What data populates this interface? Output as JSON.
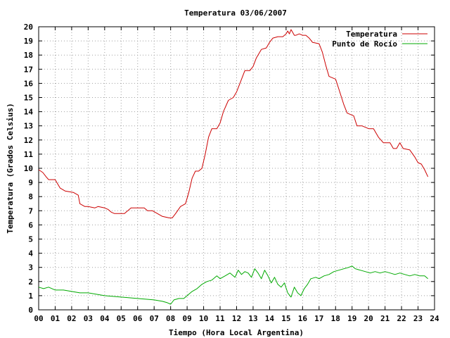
{
  "chart_data": {
    "type": "line",
    "title": "Temperatura 03/06/2007",
    "xlabel": "Tiempo (Hora Local Argentina)",
    "ylabel": "Temperatura (Grados Celsius)",
    "xlim": [
      0,
      24
    ],
    "ylim": [
      0,
      20
    ],
    "x_ticks": [
      "00",
      "01",
      "02",
      "03",
      "04",
      "05",
      "06",
      "07",
      "08",
      "09",
      "10",
      "11",
      "12",
      "13",
      "14",
      "15",
      "16",
      "17",
      "18",
      "19",
      "20",
      "21",
      "22",
      "23",
      "24"
    ],
    "y_ticks": [
      0,
      1,
      2,
      3,
      4,
      5,
      6,
      7,
      8,
      9,
      10,
      11,
      12,
      13,
      14,
      15,
      16,
      17,
      18,
      19,
      20
    ],
    "grid": true,
    "legend_position": "top-right",
    "series": [
      {
        "name": "Temperatura",
        "color": "#cc0000",
        "x": [
          0.0,
          0.25,
          0.45,
          0.6,
          1.0,
          1.3,
          1.6,
          2.1,
          2.4,
          2.5,
          2.8,
          3.0,
          3.4,
          3.6,
          4.0,
          4.2,
          4.4,
          4.6,
          4.9,
          5.2,
          5.4,
          5.6,
          5.8,
          6.1,
          6.4,
          6.6,
          6.9,
          7.2,
          7.5,
          7.9,
          8.1,
          8.3,
          8.6,
          8.9,
          9.1,
          9.3,
          9.5,
          9.7,
          9.9,
          10.1,
          10.3,
          10.5,
          10.8,
          11.0,
          11.2,
          11.5,
          11.8,
          12.0,
          12.2,
          12.5,
          12.8,
          13.0,
          13.2,
          13.5,
          13.8,
          14.0,
          14.2,
          14.5,
          14.8,
          15.0,
          15.1,
          15.2,
          15.3,
          15.4,
          15.5,
          15.6,
          15.8,
          16.0,
          16.2,
          16.4,
          16.6,
          17.0,
          17.2,
          17.4,
          17.6,
          17.8,
          18.0,
          18.2,
          18.5,
          18.7,
          18.9,
          19.1,
          19.3,
          19.6,
          19.8,
          20.0,
          20.3,
          20.6,
          20.9,
          21.1,
          21.3,
          21.5,
          21.7,
          21.9,
          22.1,
          22.5,
          22.8,
          23.0,
          23.2,
          23.4,
          23.6
        ],
        "values": [
          9.9,
          9.7,
          9.4,
          9.2,
          9.2,
          8.6,
          8.4,
          8.3,
          8.1,
          7.5,
          7.3,
          7.3,
          7.2,
          7.3,
          7.2,
          7.1,
          6.9,
          6.8,
          6.8,
          6.8,
          7.0,
          7.2,
          7.2,
          7.2,
          7.2,
          7.0,
          7.0,
          6.8,
          6.6,
          6.5,
          6.5,
          6.8,
          7.3,
          7.5,
          8.3,
          9.3,
          9.8,
          9.8,
          10.0,
          11.0,
          12.2,
          12.8,
          12.8,
          13.2,
          14.0,
          14.8,
          15.0,
          15.4,
          16.0,
          16.9,
          16.9,
          17.2,
          17.8,
          18.4,
          18.5,
          18.9,
          19.2,
          19.3,
          19.3,
          19.5,
          19.7,
          19.5,
          19.8,
          19.6,
          19.4,
          19.4,
          19.5,
          19.4,
          19.4,
          19.2,
          18.9,
          18.8,
          18.2,
          17.3,
          16.5,
          16.4,
          16.3,
          15.6,
          14.5,
          13.9,
          13.8,
          13.7,
          13.0,
          13.0,
          12.9,
          12.8,
          12.8,
          12.2,
          11.8,
          11.8,
          11.8,
          11.4,
          11.4,
          11.8,
          11.4,
          11.3,
          10.8,
          10.4,
          10.3,
          9.9,
          9.4
        ]
      },
      {
        "name": "Punto de Rocío",
        "color": "#00aa00",
        "x": [
          0.0,
          0.3,
          0.6,
          1.0,
          1.5,
          2.0,
          2.5,
          3.0,
          3.5,
          4.0,
          4.5,
          5.0,
          5.5,
          6.0,
          6.5,
          7.0,
          7.5,
          7.8,
          8.0,
          8.2,
          8.5,
          8.8,
          9.0,
          9.3,
          9.6,
          9.9,
          10.2,
          10.5,
          10.8,
          11.0,
          11.3,
          11.6,
          11.9,
          12.1,
          12.3,
          12.5,
          12.7,
          12.9,
          13.1,
          13.3,
          13.5,
          13.7,
          13.9,
          14.1,
          14.3,
          14.5,
          14.7,
          14.9,
          15.1,
          15.3,
          15.5,
          15.7,
          15.9,
          16.1,
          16.3,
          16.5,
          16.8,
          17.0,
          17.3,
          17.6,
          17.9,
          18.2,
          18.5,
          18.8,
          19.0,
          19.2,
          19.5,
          19.8,
          20.1,
          20.4,
          20.7,
          21.0,
          21.3,
          21.6,
          21.9,
          22.2,
          22.5,
          22.8,
          23.1,
          23.4,
          23.6
        ],
        "values": [
          1.6,
          1.5,
          1.6,
          1.4,
          1.4,
          1.3,
          1.2,
          1.2,
          1.1,
          1.0,
          0.95,
          0.9,
          0.85,
          0.8,
          0.75,
          0.7,
          0.6,
          0.5,
          0.4,
          0.7,
          0.8,
          0.8,
          1.0,
          1.3,
          1.5,
          1.8,
          2.0,
          2.1,
          2.4,
          2.2,
          2.4,
          2.6,
          2.3,
          2.8,
          2.5,
          2.7,
          2.6,
          2.3,
          2.9,
          2.6,
          2.2,
          2.8,
          2.4,
          1.9,
          2.3,
          1.8,
          1.6,
          1.9,
          1.2,
          0.9,
          1.6,
          1.2,
          1.0,
          1.5,
          1.8,
          2.2,
          2.3,
          2.2,
          2.4,
          2.5,
          2.7,
          2.8,
          2.9,
          3.0,
          3.1,
          2.9,
          2.8,
          2.7,
          2.6,
          2.7,
          2.6,
          2.7,
          2.6,
          2.5,
          2.6,
          2.5,
          2.4,
          2.5,
          2.4,
          2.4,
          2.2
        ]
      }
    ]
  }
}
